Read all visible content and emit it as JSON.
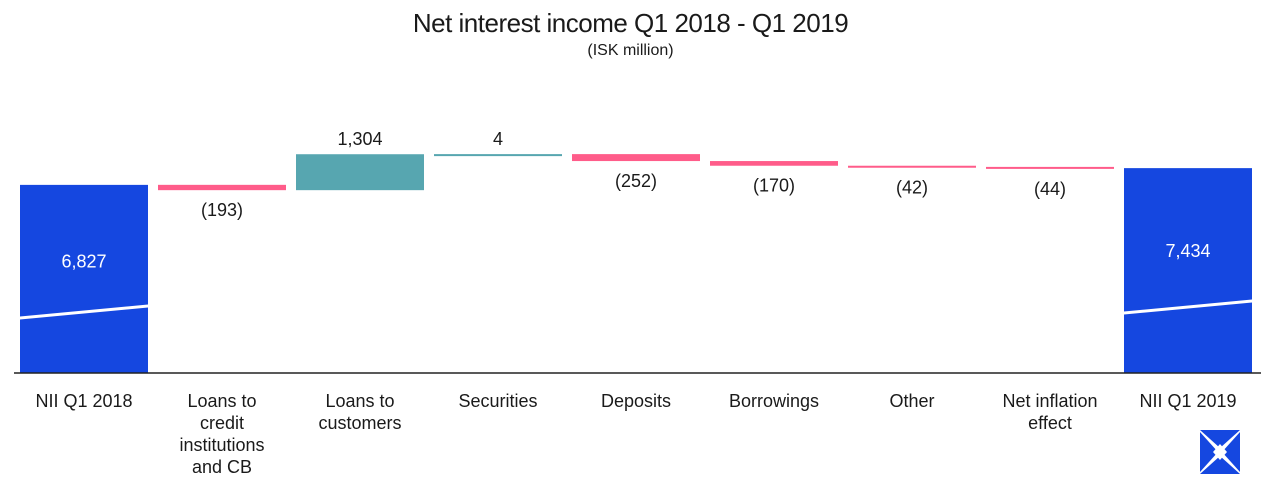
{
  "chart_data": {
    "type": "waterfall",
    "title": "Net interest income Q1 2018 - Q1 2019",
    "subtitle": "(ISK million)",
    "categories": [
      "NII Q1 2018",
      "Loans to credit institutions and CB",
      "Loans to customers",
      "Securities",
      "Deposits",
      "Borrowings",
      "Other",
      "Net inflation effect",
      "NII Q1 2019"
    ],
    "category_lines": [
      [
        "NII Q1 2018"
      ],
      [
        "Loans to",
        "credit",
        "institutions",
        "and CB"
      ],
      [
        "Loans to",
        "customers"
      ],
      [
        "Securities"
      ],
      [
        "Deposits"
      ],
      [
        "Borrowings"
      ],
      [
        "Other"
      ],
      [
        "Net inflation",
        "effect"
      ],
      [
        "NII Q1 2019"
      ]
    ],
    "values": [
      6827,
      -193,
      1304,
      4,
      -252,
      -170,
      -42,
      -44,
      7434
    ],
    "kinds": [
      "total",
      "change",
      "change",
      "change",
      "change",
      "change",
      "change",
      "change",
      "total"
    ],
    "value_labels": [
      "6,827",
      "(193)",
      "1,304",
      "4",
      "(252)",
      "(170)",
      "(42)",
      "(44)",
      "7,434"
    ],
    "colors": {
      "total": "#1547e0",
      "increase": "#57a6b0",
      "decrease": "#ff5c8a"
    },
    "axis_range_note": "y axis hidden; baseline at 0",
    "ylim": [
      0,
      8500
    ],
    "grid": false,
    "legend": "none"
  },
  "logo": {
    "name": "star-logo-icon"
  }
}
